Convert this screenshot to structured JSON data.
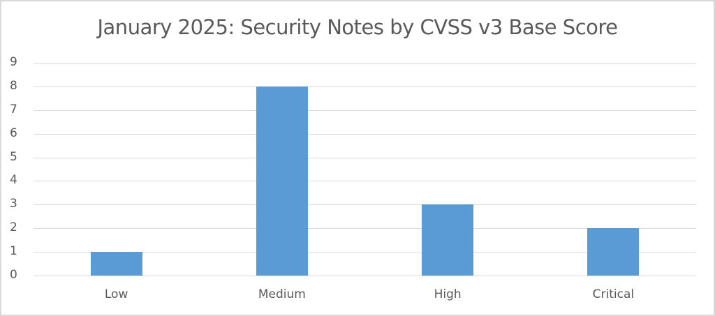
{
  "chart_data": {
    "type": "bar",
    "title": "January 2025: Security Notes by CVSS v3 Base Score",
    "categories": [
      "Low",
      "Medium",
      "High",
      "Critical"
    ],
    "values": [
      1,
      8,
      3,
      2
    ],
    "xlabel": "",
    "ylabel": "",
    "ylim": [
      0,
      9
    ],
    "yticks": [
      "0",
      "1",
      "2",
      "3",
      "4",
      "5",
      "6",
      "7",
      "8",
      "9"
    ],
    "grid": true,
    "legend": "none",
    "bar_color": "#5b9bd5"
  }
}
